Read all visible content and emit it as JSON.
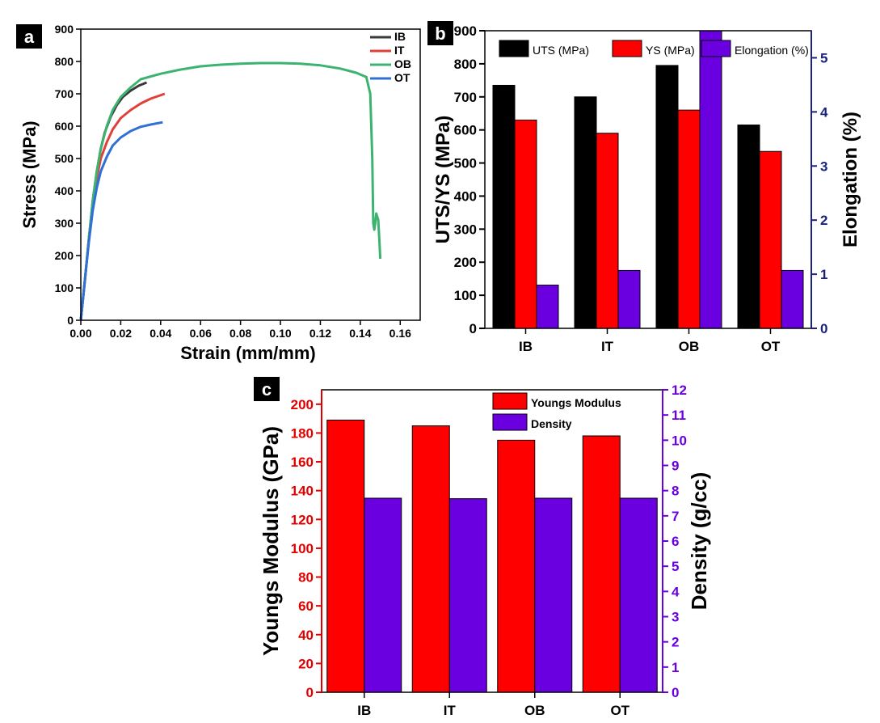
{
  "chart_data": [
    {
      "panel": "a",
      "type": "line",
      "xlabel": "Strain (mm/mm)",
      "ylabel": "Stress (MPa)",
      "xlim": [
        0,
        0.17
      ],
      "ylim": [
        0,
        900
      ],
      "xticks": [
        "0.00",
        "0.02",
        "0.04",
        "0.06",
        "0.08",
        "0.10",
        "0.12",
        "0.14",
        "0.16"
      ],
      "yticks": [
        "0",
        "100",
        "200",
        "300",
        "400",
        "500",
        "600",
        "700",
        "800",
        "900"
      ],
      "legend_position": "top-right",
      "series": [
        {
          "name": "IB",
          "color": "#3a3a3a",
          "x": [
            0,
            0.002,
            0.004,
            0.006,
            0.008,
            0.01,
            0.012,
            0.015,
            0.018,
            0.021,
            0.025,
            0.029,
            0.033
          ],
          "y": [
            0,
            120,
            250,
            370,
            460,
            530,
            580,
            630,
            665,
            690,
            710,
            725,
            735
          ]
        },
        {
          "name": "IT",
          "color": "#e0403a",
          "x": [
            0,
            0.002,
            0.004,
            0.006,
            0.008,
            0.01,
            0.013,
            0.016,
            0.02,
            0.025,
            0.03,
            0.035,
            0.042
          ],
          "y": [
            0,
            120,
            250,
            360,
            440,
            500,
            550,
            590,
            625,
            650,
            670,
            685,
            700
          ]
        },
        {
          "name": "OB",
          "color": "#3cb371",
          "x": [
            0,
            0.002,
            0.004,
            0.006,
            0.008,
            0.01,
            0.013,
            0.016,
            0.02,
            0.025,
            0.03,
            0.04,
            0.05,
            0.06,
            0.07,
            0.08,
            0.09,
            0.1,
            0.11,
            0.12,
            0.13,
            0.138,
            0.143,
            0.145,
            0.146,
            0.1465,
            0.147,
            0.1475,
            0.148,
            0.149,
            0.1495,
            0.15
          ],
          "y": [
            0,
            120,
            250,
            370,
            460,
            530,
            600,
            650,
            690,
            720,
            745,
            762,
            775,
            785,
            790,
            793,
            795,
            795,
            793,
            788,
            778,
            765,
            752,
            700,
            500,
            300,
            280,
            300,
            330,
            310,
            250,
            190
          ]
        },
        {
          "name": "OT",
          "color": "#2f6fd6",
          "x": [
            0,
            0.002,
            0.004,
            0.006,
            0.008,
            0.01,
            0.013,
            0.016,
            0.02,
            0.025,
            0.03,
            0.035,
            0.041
          ],
          "y": [
            0,
            120,
            240,
            340,
            410,
            460,
            505,
            540,
            565,
            585,
            598,
            605,
            612
          ]
        }
      ]
    },
    {
      "panel": "b",
      "type": "bar",
      "categories": [
        "IB",
        "IT",
        "OB",
        "OT"
      ],
      "ylabel": "UTS/YS (MPa)",
      "y2label": "Elongation (%)",
      "ylim": [
        0,
        900
      ],
      "y2lim": [
        0,
        5.5
      ],
      "yticks": [
        "0",
        "100",
        "200",
        "300",
        "400",
        "500",
        "600",
        "700",
        "800",
        "900"
      ],
      "y2ticks": [
        "0",
        "1",
        "2",
        "3",
        "4",
        "5"
      ],
      "legend_position": "top",
      "series": [
        {
          "name": "UTS (MPa)",
          "axis": "left",
          "color": "#000000",
          "values": [
            735,
            700,
            795,
            615
          ]
        },
        {
          "name": "YS (MPa)",
          "axis": "left",
          "color": "#ff0000",
          "values": [
            630,
            590,
            660,
            535
          ]
        },
        {
          "name": "Elongation (%)",
          "axis": "right",
          "color": "#6a00e0",
          "values": [
            0.8,
            1.07,
            5.5,
            1.07
          ]
        }
      ]
    },
    {
      "panel": "c",
      "type": "bar",
      "categories": [
        "IB",
        "IT",
        "OB",
        "OT"
      ],
      "ylabel": "Youngs Modulus (GPa)",
      "y2label": "Density (g/cc)",
      "ylim": [
        0,
        210
      ],
      "y2lim": [
        0,
        12
      ],
      "yticks": [
        "0",
        "20",
        "40",
        "60",
        "80",
        "100",
        "120",
        "140",
        "160",
        "180",
        "200"
      ],
      "y2ticks": [
        "0",
        "1",
        "2",
        "3",
        "4",
        "5",
        "6",
        "7",
        "8",
        "9",
        "10",
        "11",
        "12"
      ],
      "legend_position": "top-right",
      "series": [
        {
          "name": "Youngs Modulus",
          "axis": "left",
          "color": "#ff0000",
          "values": [
            189,
            185,
            175,
            178
          ]
        },
        {
          "name": "Density",
          "axis": "right",
          "color": "#6a00e0",
          "values": [
            7.7,
            7.68,
            7.7,
            7.7
          ]
        }
      ]
    }
  ],
  "colors": {
    "panel_b_right_axis": "#1a237e",
    "panel_c_left_axis": "#e00000",
    "panel_c_right_axis": "#6a00e0"
  }
}
